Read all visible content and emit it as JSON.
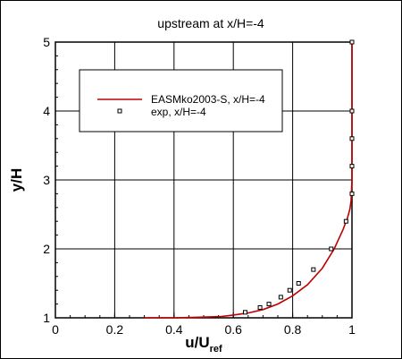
{
  "chart_data": {
    "type": "line",
    "title": "upstream at x/H=-4",
    "xlabel": "u/U",
    "xlabel_sub": "ref",
    "ylabel": "y/H",
    "xlim": [
      0,
      1
    ],
    "ylim": [
      1,
      5
    ],
    "xticks": [
      0,
      0.2,
      0.4,
      0.6,
      0.8,
      1
    ],
    "xtick_labels": [
      "0",
      "0.2",
      "0.4",
      "0.6",
      "0.8",
      "1"
    ],
    "yticks": [
      1,
      2,
      3,
      4,
      5
    ],
    "ytick_labels": [
      "1",
      "2",
      "3",
      "4",
      "5"
    ],
    "grid": true,
    "legend_position": "upper-left inside",
    "series": [
      {
        "name": "EASMko2003-S, x/H=-4",
        "kind": "line",
        "color": "#c00000",
        "x": [
          0.3,
          0.4,
          0.5,
          0.56,
          0.6,
          0.65,
          0.7,
          0.75,
          0.8,
          0.85,
          0.9,
          0.94,
          0.97,
          0.985,
          0.993,
          0.997,
          1.0,
          1.0,
          1.0
        ],
        "y": [
          1.0,
          1.0,
          1.01,
          1.02,
          1.04,
          1.07,
          1.12,
          1.2,
          1.32,
          1.48,
          1.72,
          2.0,
          2.28,
          2.45,
          2.58,
          2.7,
          3.0,
          4.0,
          5.0
        ]
      },
      {
        "name": "exp, x/H=-4",
        "kind": "markers",
        "color": "#000000",
        "x": [
          0.64,
          0.69,
          0.72,
          0.76,
          0.79,
          0.82,
          0.87,
          0.93,
          0.98,
          1.0,
          1.0,
          1.0,
          1.0,
          1.0
        ],
        "y": [
          1.08,
          1.15,
          1.2,
          1.3,
          1.4,
          1.5,
          1.7,
          2.0,
          2.4,
          2.8,
          3.2,
          3.6,
          4.0,
          5.0
        ]
      }
    ]
  }
}
